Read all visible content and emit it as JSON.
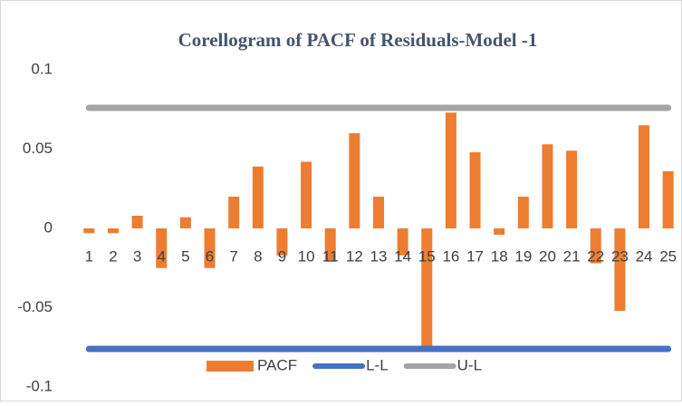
{
  "chart_data": {
    "type": "bar",
    "title": "Corellogram of PACF of Residuals-Model -1",
    "categories": [
      "1",
      "2",
      "3",
      "4",
      "5",
      "6",
      "7",
      "8",
      "9",
      "10",
      "11",
      "12",
      "13",
      "14",
      "15",
      "16",
      "17",
      "18",
      "19",
      "20",
      "21",
      "22",
      "23",
      "24",
      "25"
    ],
    "series": [
      {
        "name": "PACF",
        "type": "bar",
        "color": "#ed7d31",
        "values": [
          -0.003,
          -0.003,
          0.008,
          -0.025,
          0.007,
          -0.025,
          0.02,
          0.039,
          -0.017,
          0.042,
          -0.021,
          0.06,
          0.02,
          -0.017,
          -0.075,
          0.073,
          0.048,
          -0.004,
          0.02,
          0.053,
          0.049,
          -0.022,
          -0.052,
          0.065,
          0.036
        ]
      },
      {
        "name": "L-L",
        "type": "line",
        "color": "#4472c4",
        "values": [
          -0.076,
          -0.076,
          -0.076,
          -0.076,
          -0.076,
          -0.076,
          -0.076,
          -0.076,
          -0.076,
          -0.076,
          -0.076,
          -0.076,
          -0.076,
          -0.076,
          -0.076,
          -0.076,
          -0.076,
          -0.076,
          -0.076,
          -0.076,
          -0.076,
          -0.076,
          -0.076,
          -0.076,
          -0.076
        ]
      },
      {
        "name": "U-L",
        "type": "line",
        "color": "#a5a5a5",
        "values": [
          0.076,
          0.076,
          0.076,
          0.076,
          0.076,
          0.076,
          0.076,
          0.076,
          0.076,
          0.076,
          0.076,
          0.076,
          0.076,
          0.076,
          0.076,
          0.076,
          0.076,
          0.076,
          0.076,
          0.076,
          0.076,
          0.076,
          0.076,
          0.076,
          0.076
        ]
      }
    ],
    "ylim": [
      -0.1,
      0.1
    ],
    "yticks": [
      -0.1,
      -0.05,
      0,
      0.05,
      0.1
    ],
    "grid": false,
    "legend": "bottom"
  }
}
